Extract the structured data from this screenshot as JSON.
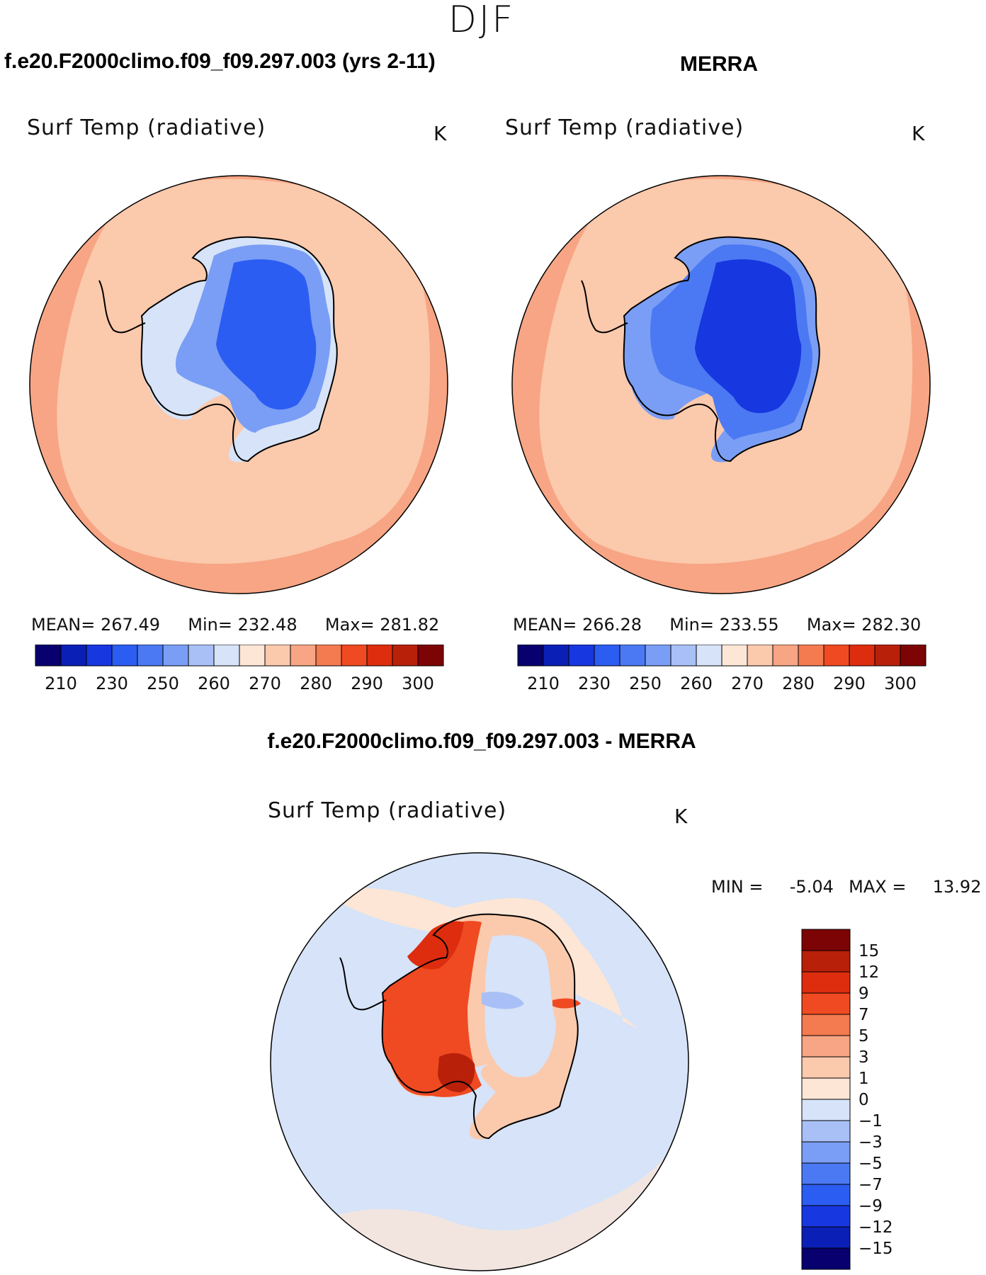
{
  "title": "DJF",
  "panels": {
    "left": {
      "case": "f.e20.F2000climo.f09_f09.297.003 (yrs 2-11)",
      "variable": "Surf Temp (radiative)",
      "units": "K",
      "mean_label": "MEAN=",
      "mean_value": "267.49",
      "min_label": "Min=",
      "min_value": "232.48",
      "max_label": "Max=",
      "max_value": "281.82"
    },
    "right": {
      "case": "MERRA",
      "variable": "Surf Temp (radiative)",
      "units": "K",
      "mean_label": "MEAN=",
      "mean_value": "266.28",
      "min_label": "Min=",
      "min_value": "233.55",
      "max_label": "Max=",
      "max_value": "282.30"
    },
    "diff": {
      "case": "f.e20.F2000climo.f09_f09.297.003 - MERRA",
      "variable": "Surf Temp (radiative)",
      "units": "K",
      "min_label": "MIN =",
      "min_value": "-5.04",
      "max_label": "MAX =",
      "max_value": "13.92"
    }
  },
  "abs_colorbar": {
    "colors": [
      "#08006e",
      "#0a1fb5",
      "#1737e0",
      "#2c5df2",
      "#4b79f3",
      "#7a9ef5",
      "#a8c0f6",
      "#d6e3f8",
      "#fde6d6",
      "#fbc9ac",
      "#f7a584",
      "#f47a50",
      "#ef4a22",
      "#de2d0e",
      "#b92009",
      "#7d0404"
    ],
    "tick_labels": [
      "210",
      "230",
      "250",
      "260",
      "270",
      "280",
      "290",
      "300"
    ]
  },
  "diff_colorbar": {
    "colors": [
      "#08006e",
      "#0a1fb5",
      "#1737e0",
      "#2c5df2",
      "#4b79f3",
      "#7a9ef5",
      "#a8c0f6",
      "#d6e3f8",
      "#fde6d6",
      "#fbc9ac",
      "#f7a584",
      "#f47a50",
      "#ef4a22",
      "#de2d0e",
      "#b92009",
      "#7d0404"
    ],
    "tick_labels": [
      "15",
      "12",
      "9",
      "7",
      "5",
      "3",
      "1",
      "0",
      "-1",
      "-3",
      "-5",
      "-7",
      "-9",
      "-12",
      "-15"
    ]
  }
}
